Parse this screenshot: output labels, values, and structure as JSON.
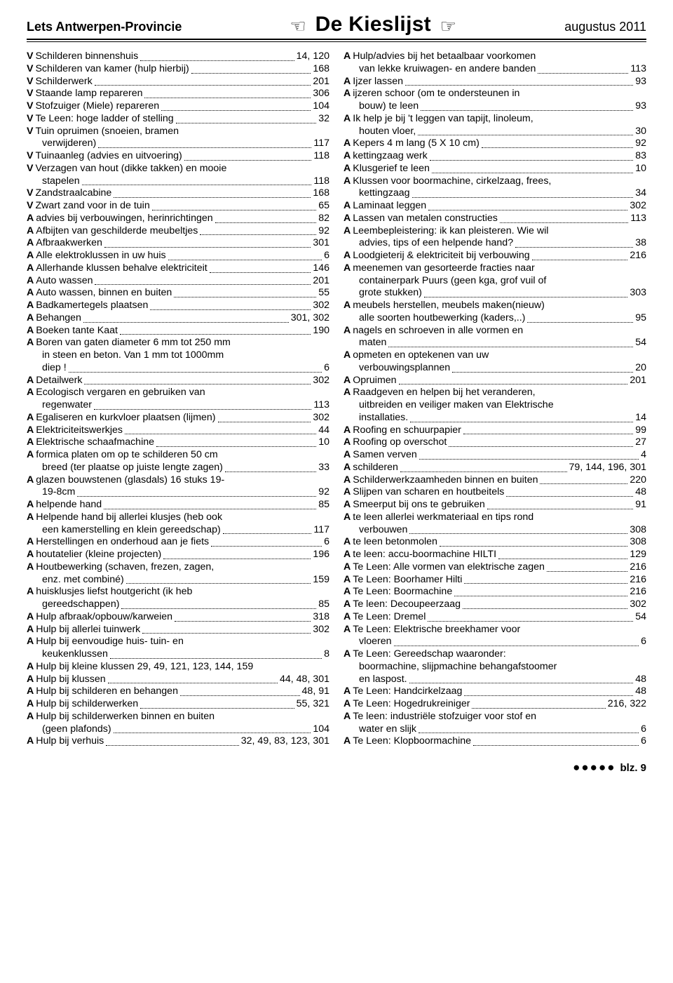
{
  "header": {
    "left": "Lets Antwerpen-Provincie",
    "center": "De Kieslijst",
    "right": "augustus 2011",
    "hand_left": "☜",
    "hand_right": "☞"
  },
  "footer": {
    "bullets": "●●●●●",
    "label": "blz.",
    "page": "9"
  },
  "left": [
    {
      "p": "V",
      "t": "Schilderen binnenshuis",
      "n": "14, 120"
    },
    {
      "p": "V",
      "t": "Schilderen van kamer (hulp hierbij)",
      "n": "168"
    },
    {
      "p": "V",
      "t": "Schilderwerk",
      "n": "201"
    },
    {
      "p": "V",
      "t": "Staande lamp repareren",
      "n": "306"
    },
    {
      "p": "V",
      "t": "Stofzuiger (Miele) repareren",
      "n": "104"
    },
    {
      "p": "V",
      "t": "Te Leen: hoge ladder of stelling",
      "n": "32"
    },
    {
      "p": "V",
      "t": "Tuin opruimen (snoeien, bramen",
      "wrap": "verwijderen)",
      "n": "117"
    },
    {
      "p": "V",
      "t": "Tuinaanleg (advies en uitvoering)",
      "n": "118"
    },
    {
      "p": "V",
      "t": "Verzagen van hout (dikke takken) en mooie",
      "wrap": "stapelen",
      "n": "118"
    },
    {
      "p": "V",
      "t": "Zandstraalcabine",
      "n": "168"
    },
    {
      "p": "V",
      "t": "Zwart zand voor in de tuin",
      "n": "65"
    },
    {
      "p": "A",
      "t": "advies bij verbouwingen, herinrichtingen",
      "n": "82"
    },
    {
      "p": "A",
      "t": "Afbijten van geschilderde meubeltjes",
      "n": "92"
    },
    {
      "p": "A",
      "t": "Afbraakwerken",
      "n": "301"
    },
    {
      "p": "A",
      "t": "Alle elektroklussen in uw huis",
      "n": "6"
    },
    {
      "p": "A",
      "t": "Allerhande klussen behalve elektriciteit",
      "n": "146"
    },
    {
      "p": "A",
      "t": "Auto wassen",
      "n": "201"
    },
    {
      "p": "A",
      "t": "Auto wassen, binnen en buiten",
      "n": "55"
    },
    {
      "p": "A",
      "t": "Badkamertegels plaatsen",
      "n": "302"
    },
    {
      "p": "A",
      "t": "Behangen",
      "n": "301, 302"
    },
    {
      "p": "A",
      "t": "Boeken tante Kaat",
      "n": "190"
    },
    {
      "p": "A",
      "t": "Boren van gaten diameter 6 mm tot 250 mm",
      "wrap": "in steen en beton. Van 1 mm tot 1000mm",
      "wrap2": "diep !",
      "n": "6"
    },
    {
      "p": "A",
      "t": "Detailwerk",
      "n": "302"
    },
    {
      "p": "A",
      "t": "Ecologisch vergaren en gebruiken van",
      "wrap": "regenwater",
      "n": "113"
    },
    {
      "p": "A",
      "t": "Egaliseren en kurkvloer plaatsen (lijmen)",
      "n": "302"
    },
    {
      "p": "A",
      "t": "Elektriciteitswerkjes",
      "n": "44"
    },
    {
      "p": "A",
      "t": "Elektrische schaafmachine",
      "n": "10"
    },
    {
      "p": "A",
      "t": "formica platen om op te schilderen 50 cm",
      "wrap": "breed (ter plaatse op juiste lengte zagen)",
      "n": "33"
    },
    {
      "p": "A",
      "t": "glazen bouwstenen (glasdals) 16 stuks 19-",
      "wrap": "19-8cm",
      "n": "92"
    },
    {
      "p": "A",
      "t": "helpende hand",
      "n": "85"
    },
    {
      "p": "A",
      "t": "Helpende hand bij allerlei klusjes (heb ook",
      "wrap": "een kamerstelling en klein gereedschap)",
      "n": "117"
    },
    {
      "p": "A",
      "t": "Herstellingen en onderhoud aan je fiets",
      "n": "6"
    },
    {
      "p": "A",
      "t": "houtatelier (kleine projecten)",
      "n": "196"
    },
    {
      "p": "A",
      "t": "Houtbewerking (schaven, frezen, zagen,",
      "wrap": "enz. met combiné)",
      "n": "159"
    },
    {
      "p": "A",
      "t": "huisklusjes liefst houtgericht (ik heb",
      "wrap": "gereedschappen)",
      "n": "85"
    },
    {
      "p": "A",
      "t": "Hulp afbraak/opbouw/karweien",
      "n": "318"
    },
    {
      "p": "A",
      "t": "Hulp bij allerlei tuinwerk",
      "n": "302"
    },
    {
      "p": "A",
      "t": "Hulp bij eenvoudige huis- tuin- en",
      "wrap": "keukenklussen",
      "n": "8"
    },
    {
      "p": "A",
      "t": "Hulp bij kleine klussen 29, 49, 121, 123, 144, 159",
      "nodots": true
    },
    {
      "p": "A",
      "t": "Hulp bij klussen",
      "n": "44, 48, 301"
    },
    {
      "p": "A",
      "t": "Hulp bij schilderen en behangen",
      "n": "48, 91"
    },
    {
      "p": "A",
      "t": "Hulp bij schilderwerken",
      "n": "55, 321"
    },
    {
      "p": "A",
      "t": "Hulp bij schilderwerken binnen en buiten",
      "wrap": "(geen plafonds)",
      "n": "104"
    },
    {
      "p": "A",
      "t": "Hulp bij verhuis",
      "n": "32, 49, 83, 123, 301"
    }
  ],
  "right": [
    {
      "p": "A",
      "t": "Hulp/advies bij het betaalbaar voorkomen",
      "wrap": "van lekke kruiwagen- en andere banden",
      "n": "113"
    },
    {
      "p": "A",
      "t": "Ijzer lassen",
      "n": "93"
    },
    {
      "p": "A",
      "t": "ijzeren schoor (om te ondersteunen in",
      "wrap": "bouw) te leen",
      "n": "93"
    },
    {
      "p": "A",
      "t": "Ik help je bij 't leggen van tapijt, linoleum,",
      "wrap": "houten vloer,",
      "n": "30"
    },
    {
      "p": "A",
      "t": "Kepers 4 m lang (5 X 10 cm)",
      "n": "92"
    },
    {
      "p": "A",
      "t": "kettingzaag werk",
      "n": "83"
    },
    {
      "p": "A",
      "t": "Klusgerief te leen",
      "n": "10"
    },
    {
      "p": "A",
      "t": "Klussen voor boormachine, cirkelzaag, frees,",
      "wrap": "kettingzaag",
      "n": "34"
    },
    {
      "p": "A",
      "t": "Laminaat leggen",
      "n": "302"
    },
    {
      "p": "A",
      "t": "Lassen van metalen constructies",
      "n": "113"
    },
    {
      "p": "A",
      "t": "Leembepleistering: ik kan pleisteren. Wie wil",
      "wrap": "advies, tips of een helpende hand?",
      "n": "38"
    },
    {
      "p": "A",
      "t": "Loodgieterij & elektriciteit bij verbouwing",
      "n": "216"
    },
    {
      "p": "A",
      "t": "meenemen van gesorteerde fracties naar",
      "wrap": "containerpark Puurs (geen kga, grof vuil of",
      "wrap2": "grote stukken)",
      "n": "303"
    },
    {
      "p": "A",
      "t": "meubels herstellen, meubels maken(nieuw)",
      "wrap": "alle soorten houtbewerking (kaders,..)",
      "n": "95"
    },
    {
      "p": "A",
      "t": "nagels en schroeven in alle vormen en",
      "wrap": "maten",
      "n": "54"
    },
    {
      "p": "A",
      "t": "opmeten en optekenen van uw",
      "wrap": "verbouwingsplannen",
      "n": "20"
    },
    {
      "p": "A",
      "t": "Opruimen",
      "n": "201"
    },
    {
      "p": "A",
      "t": "Raadgeven en helpen bij het veranderen,",
      "wrap": "uitbreiden en veiliger maken van Elektrische",
      "wrap2": "installaties.",
      "n": "14"
    },
    {
      "p": "A",
      "t": "Roofing en schuurpapier",
      "n": "99"
    },
    {
      "p": "A",
      "t": "Roofing op overschot",
      "n": "27"
    },
    {
      "p": "A",
      "t": "Samen verven",
      "n": "4"
    },
    {
      "p": "A",
      "t": "schilderen",
      "n": "79, 144, 196, 301"
    },
    {
      "p": "A",
      "t": "Schilderwerkzaamheden binnen en buiten",
      "n": "220"
    },
    {
      "p": "A",
      "t": "Slijpen van scharen en houtbeitels",
      "n": "48"
    },
    {
      "p": "A",
      "t": "Smeerput bij ons te gebruiken",
      "n": "91"
    },
    {
      "p": "A",
      "t": "te leen allerlei werkmateriaal en tips rond",
      "wrap": "verbouwen",
      "n": "308"
    },
    {
      "p": "A",
      "t": "te leen betonmolen",
      "n": "308"
    },
    {
      "p": "A",
      "t": "te leen: accu-boormachine HILTI",
      "n": "129"
    },
    {
      "p": "A",
      "t": "Te Leen: Alle vormen van elektrische zagen",
      "n": "216"
    },
    {
      "p": "A",
      "t": "Te Leen: Boorhamer Hilti",
      "n": "216"
    },
    {
      "p": "A",
      "t": "Te Leen: Boormachine",
      "n": "216"
    },
    {
      "p": "A",
      "t": "Te leen: Decoupeerzaag",
      "n": "302"
    },
    {
      "p": "A",
      "t": "Te Leen: Dremel",
      "n": "54"
    },
    {
      "p": "A",
      "t": "Te Leen: Elektrische breekhamer voor",
      "wrap": "vloeren",
      "n": "6"
    },
    {
      "p": "A",
      "t": "Te Leen: Gereedschap waaronder:",
      "wrap": "boormachine, slijpmachine behangafstoomer",
      "wrap2": "en laspost.",
      "n": "48"
    },
    {
      "p": "A",
      "t": "Te Leen: Handcirkelzaag",
      "n": "48"
    },
    {
      "p": "A",
      "t": "Te Leen: Hogedrukreiniger",
      "n": "216, 322"
    },
    {
      "p": "A",
      "t": "Te leen: industriële stofzuiger voor stof en",
      "wrap": "water en slijk",
      "n": "6"
    },
    {
      "p": "A",
      "t": "Te Leen: Klopboormachine",
      "n": "6"
    }
  ]
}
